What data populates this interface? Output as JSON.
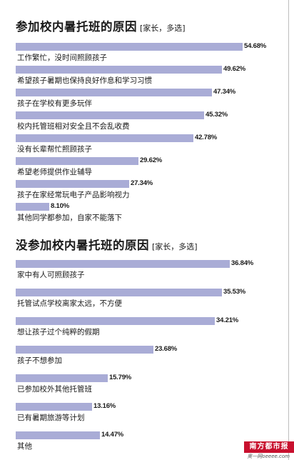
{
  "chart_data": [
    {
      "type": "bar",
      "orientation": "horizontal",
      "title": "参加校内暑托班的原因",
      "note": "[家长，多选]",
      "unit": "%",
      "xlim": [
        0,
        55
      ],
      "categories": [
        "工作繁忙，没时间照顾孩子",
        "希望孩子暑期也保持良好作息和学习习惯",
        "孩子在学校有更多玩伴",
        "校内托管班相对安全且不会乱收费",
        "没有长辈帮忙照顾孩子",
        "希望老师提供作业辅导",
        "孩子在家经常玩电子产品影响视力",
        "其他同学都参加，自家不能落下"
      ],
      "values": [
        54.68,
        49.62,
        47.34,
        45.32,
        42.78,
        29.62,
        27.34,
        8.1
      ],
      "value_labels": [
        "54.68%",
        "49.62%",
        "47.34%",
        "45.32%",
        "42.78%",
        "29.62%",
        "27.34%",
        "8.10%"
      ]
    },
    {
      "type": "bar",
      "orientation": "horizontal",
      "title": "没参加校内暑托班的原因",
      "note": "[家长，多选]",
      "unit": "%",
      "xlim": [
        0,
        36.84
      ],
      "categories": [
        "家中有人可照顾孩子",
        "托管试点学校离家太远，不方便",
        "想让孩子过个纯粹的假期",
        "孩子不想参加",
        "已参加校外其他托管班",
        "已有暑期旅游等计划",
        "其他"
      ],
      "values": [
        36.84,
        35.53,
        34.21,
        23.68,
        15.79,
        13.16,
        14.47
      ],
      "value_labels": [
        "36.84%",
        "35.53%",
        "34.21%",
        "23.68%",
        "15.79%",
        "13.16%",
        "14.47%"
      ]
    }
  ],
  "logo": {
    "text": "南方都市报",
    "subtext": "奥一网oeeee.com"
  }
}
